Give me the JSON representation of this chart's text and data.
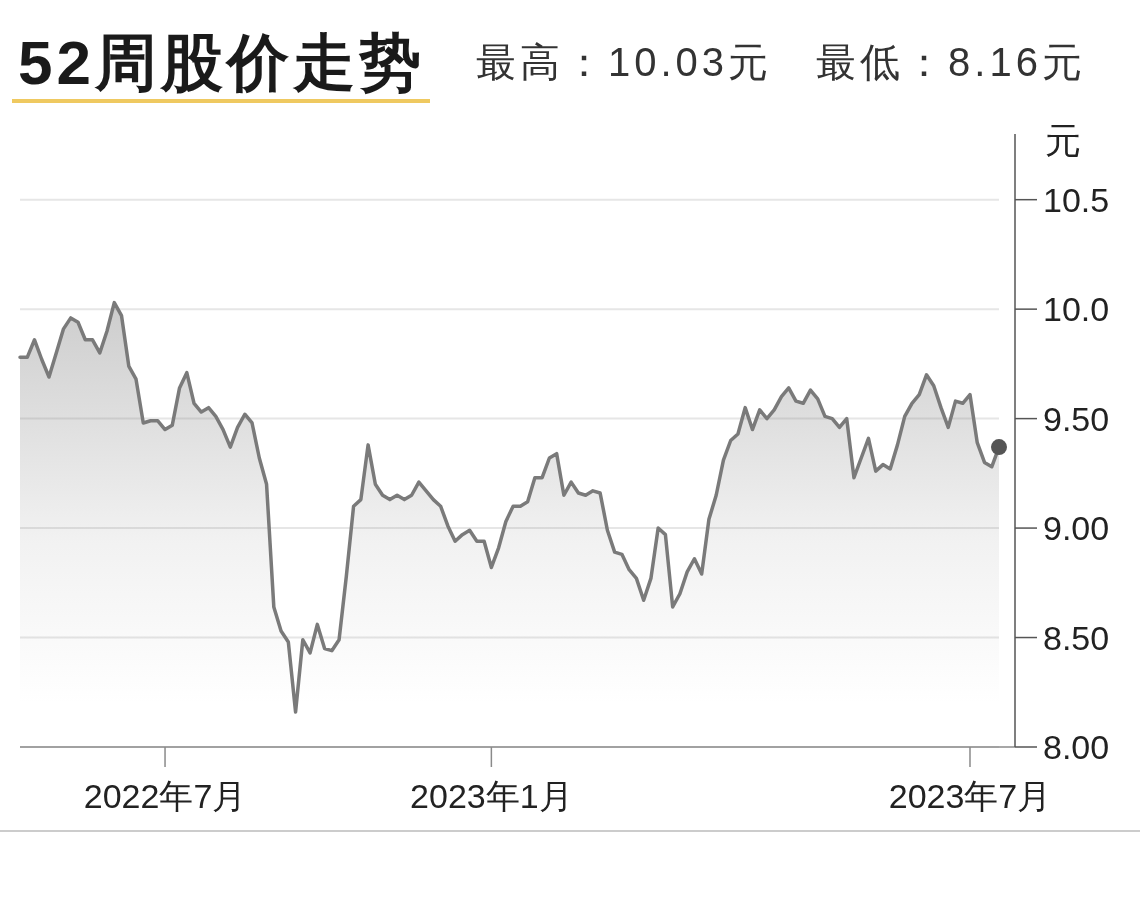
{
  "chart_data": {
    "type": "area",
    "title": "52周股价走势",
    "subtitle": "最高：10.03元　最低：8.16元",
    "ylabel": "元",
    "categories": [
      null,
      null,
      null,
      null,
      null,
      null,
      null,
      null,
      null,
      null,
      null,
      null,
      null,
      null,
      null,
      null,
      null,
      null,
      null,
      null,
      "2022年7月",
      null,
      null,
      null,
      null,
      null,
      null,
      null,
      null,
      null,
      null,
      null,
      null,
      null,
      null,
      null,
      null,
      null,
      null,
      null,
      null,
      null,
      null,
      null,
      null,
      null,
      null,
      null,
      null,
      null,
      null,
      null,
      null,
      null,
      null,
      null,
      null,
      null,
      null,
      null,
      null,
      null,
      null,
      null,
      null,
      "2023年1月",
      null,
      null,
      null,
      null,
      null,
      null,
      null,
      null,
      null,
      null,
      null,
      null,
      null,
      null,
      null,
      null,
      null,
      null,
      null,
      null,
      null,
      null,
      null,
      null,
      null,
      null,
      null,
      null,
      null,
      null,
      null,
      null,
      null,
      null,
      null,
      null,
      null,
      null,
      null,
      null,
      null,
      null,
      null,
      null,
      null,
      null,
      null,
      null,
      null,
      null,
      null,
      null,
      null,
      null,
      null,
      null,
      null,
      null,
      null,
      null,
      null,
      null,
      null,
      null,
      null,
      "2023年7月",
      null,
      null,
      null,
      null
    ],
    "series": [
      {
        "color": "#7a7a7a",
        "values": [
          9.78,
          9.78,
          9.86,
          9.77,
          9.69,
          9.8,
          9.91,
          9.96,
          9.94,
          9.86,
          9.86,
          9.8,
          9.9,
          10.03,
          9.97,
          9.74,
          9.68,
          9.48,
          9.49,
          9.49,
          9.45,
          9.47,
          9.64,
          9.71,
          9.57,
          9.53,
          9.55,
          9.51,
          9.45,
          9.37,
          9.46,
          9.52,
          9.48,
          9.32,
          9.2,
          8.64,
          8.53,
          8.48,
          8.16,
          8.49,
          8.43,
          8.56,
          8.45,
          8.44,
          8.49,
          8.78,
          9.1,
          9.13,
          9.38,
          9.2,
          9.15,
          9.13,
          9.15,
          9.13,
          9.15,
          9.21,
          9.17,
          9.13,
          9.1,
          9.01,
          8.94,
          8.97,
          8.99,
          8.94,
          8.94,
          8.82,
          8.91,
          9.03,
          9.1,
          9.1,
          9.12,
          9.23,
          9.23,
          9.32,
          9.34,
          9.15,
          9.21,
          9.16,
          9.15,
          9.17,
          9.16,
          8.99,
          8.89,
          8.88,
          8.81,
          8.77,
          8.67,
          8.77,
          9.0,
          8.97,
          8.64,
          8.7,
          8.8,
          8.86,
          8.79,
          9.04,
          9.15,
          9.31,
          9.4,
          9.43,
          9.55,
          9.45,
          9.54,
          9.5,
          9.54,
          9.6,
          9.64,
          9.58,
          9.57,
          9.63,
          9.59,
          9.51,
          9.5,
          9.46,
          9.5,
          9.23,
          9.32,
          9.41,
          9.26,
          9.29,
          9.27,
          9.38,
          9.51,
          9.57,
          9.61,
          9.7,
          9.65,
          9.55,
          9.46,
          9.58,
          9.57,
          9.61,
          9.39,
          9.3,
          9.28,
          9.37
        ]
      },
      {
        "type": "scatter",
        "color": "#555555",
        "values": [
          null,
          null,
          null,
          null,
          null,
          null,
          null,
          null,
          null,
          null,
          null,
          null,
          null,
          null,
          null,
          null,
          null,
          null,
          null,
          null,
          null,
          null,
          null,
          null,
          null,
          null,
          null,
          null,
          null,
          null,
          null,
          null,
          null,
          null,
          null,
          null,
          null,
          null,
          null,
          null,
          null,
          null,
          null,
          null,
          null,
          null,
          null,
          null,
          null,
          null,
          null,
          null,
          null,
          null,
          null,
          null,
          null,
          null,
          null,
          null,
          null,
          null,
          null,
          null,
          null,
          null,
          null,
          null,
          null,
          null,
          null,
          null,
          null,
          null,
          null,
          null,
          null,
          null,
          null,
          null,
          null,
          null,
          null,
          null,
          null,
          null,
          null,
          null,
          null,
          null,
          null,
          null,
          null,
          null,
          null,
          null,
          null,
          null,
          null,
          null,
          null,
          null,
          null,
          null,
          null,
          null,
          null,
          null,
          null,
          null,
          null,
          null,
          null,
          null,
          null,
          null,
          null,
          null,
          null,
          null,
          null,
          null,
          null,
          null,
          null,
          null,
          null,
          null,
          null,
          null,
          null,
          null,
          null,
          null,
          null,
          9.37
        ]
      }
    ],
    "ylim": [
      8.0,
      10.8
    ],
    "yticks": [
      {
        "value": 8,
        "label": "8.00"
      },
      {
        "value": 8.5,
        "label": "8.50"
      },
      {
        "value": 9,
        "label": "9.00"
      },
      {
        "value": 9.5,
        "label": "9.50"
      },
      {
        "value": 10,
        "label": "10.0"
      },
      {
        "value": 10.5,
        "label": "10.5"
      }
    ],
    "grid": "y"
  }
}
